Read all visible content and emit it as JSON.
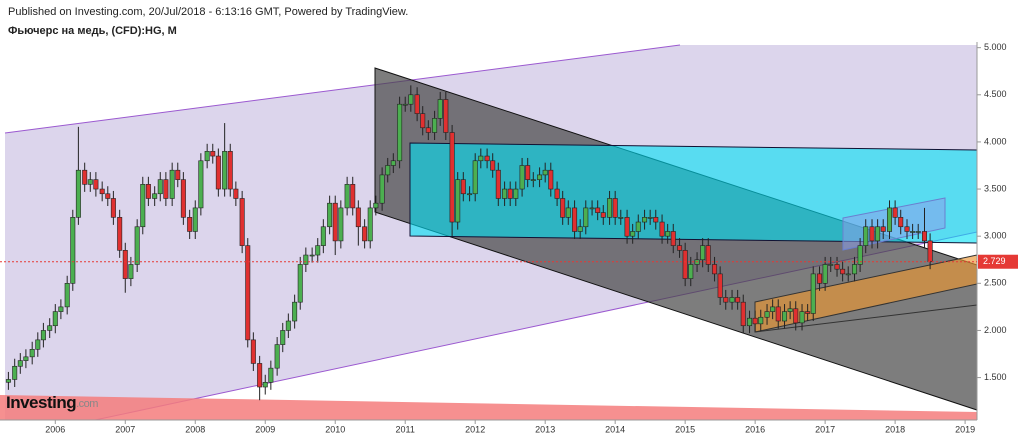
{
  "header": {
    "published": "Published on Investing.com, 20/Jul/2018 - 6:13:16 GMT, Powered by TradingView.",
    "symbol": "Фьючерс на медь, (CFD):HG, M"
  },
  "logo": {
    "name": "Investing",
    "domain": ".com"
  },
  "chart_data": {
    "type": "candlestick",
    "title": "Фьючерс на медь, (CFD):HG, M",
    "up_color": "#4caf50",
    "down_color": "#e03030",
    "last_color": "#e53935",
    "x": [
      2005.33,
      2005.42,
      2005.5,
      2005.58,
      2005.67,
      2005.75,
      2005.83,
      2005.92,
      2006,
      2006.08,
      2006.17,
      2006.25,
      2006.33,
      2006.42,
      2006.5,
      2006.58,
      2006.67,
      2006.75,
      2006.83,
      2006.92,
      2007,
      2007.08,
      2007.17,
      2007.25,
      2007.33,
      2007.42,
      2007.5,
      2007.58,
      2007.67,
      2007.75,
      2007.83,
      2007.92,
      2008,
      2008.08,
      2008.17,
      2008.25,
      2008.33,
      2008.42,
      2008.5,
      2008.58,
      2008.67,
      2008.75,
      2008.83,
      2008.92,
      2009,
      2009.08,
      2009.17,
      2009.25,
      2009.33,
      2009.42,
      2009.5,
      2009.58,
      2009.67,
      2009.75,
      2009.83,
      2009.92,
      2010,
      2010.08,
      2010.17,
      2010.25,
      2010.33,
      2010.42,
      2010.5,
      2010.58,
      2010.67,
      2010.75,
      2010.83,
      2010.92,
      2011,
      2011.08,
      2011.17,
      2011.25,
      2011.33,
      2011.42,
      2011.5,
      2011.58,
      2011.67,
      2011.75,
      2011.83,
      2011.92,
      2012,
      2012.08,
      2012.17,
      2012.25,
      2012.33,
      2012.42,
      2012.5,
      2012.58,
      2012.67,
      2012.75,
      2012.83,
      2012.92,
      2013,
      2013.08,
      2013.17,
      2013.25,
      2013.33,
      2013.42,
      2013.5,
      2013.58,
      2013.67,
      2013.75,
      2013.83,
      2013.92,
      2014,
      2014.08,
      2014.17,
      2014.25,
      2014.33,
      2014.42,
      2014.5,
      2014.58,
      2014.67,
      2014.75,
      2014.83,
      2014.92,
      2015,
      2015.08,
      2015.17,
      2015.25,
      2015.33,
      2015.42,
      2015.5,
      2015.58,
      2015.67,
      2015.75,
      2015.83,
      2015.92,
      2016,
      2016.08,
      2016.17,
      2016.25,
      2016.33,
      2016.42,
      2016.5,
      2016.58,
      2016.67,
      2016.75,
      2016.83,
      2016.92,
      2017,
      2017.08,
      2017.17,
      2017.25,
      2017.33,
      2017.42,
      2017.5,
      2017.58,
      2017.67,
      2017.75,
      2017.83,
      2017.92,
      2018,
      2018.08,
      2018.17,
      2018.25,
      2018.33,
      2018.42,
      2018.5
    ],
    "open": [
      1.45,
      1.48,
      1.62,
      1.68,
      1.72,
      1.8,
      1.9,
      2.0,
      2.05,
      2.2,
      2.25,
      2.5,
      3.2,
      3.7,
      3.55,
      3.6,
      3.5,
      3.45,
      3.4,
      3.2,
      2.85,
      2.55,
      2.7,
      3.1,
      3.55,
      3.4,
      3.45,
      3.6,
      3.4,
      3.7,
      3.6,
      3.2,
      3.05,
      3.3,
      3.8,
      3.9,
      3.85,
      3.5,
      3.9,
      3.5,
      3.4,
      2.9,
      1.9,
      1.65,
      1.4,
      1.45,
      1.6,
      1.85,
      2.0,
      2.1,
      2.3,
      2.7,
      2.8,
      2.8,
      2.9,
      3.1,
      3.35,
      2.95,
      3.3,
      3.55,
      3.3,
      3.1,
      2.95,
      3.3,
      3.35,
      3.65,
      3.75,
      3.8,
      4.4,
      4.4,
      4.5,
      4.3,
      4.15,
      4.1,
      4.25,
      4.45,
      4.1,
      3.15,
      3.6,
      3.45,
      3.45,
      3.8,
      3.85,
      3.8,
      3.7,
      3.4,
      3.5,
      3.4,
      3.5,
      3.75,
      3.6,
      3.6,
      3.65,
      3.7,
      3.5,
      3.4,
      3.2,
      3.3,
      3.05,
      3.1,
      3.3,
      3.3,
      3.25,
      3.2,
      3.4,
      3.2,
      3.2,
      3.0,
      3.05,
      3.15,
      3.2,
      3.2,
      3.15,
      3.0,
      3.05,
      2.9,
      2.85,
      2.55,
      2.7,
      2.75,
      2.9,
      2.7,
      2.6,
      2.35,
      2.3,
      2.35,
      2.3,
      2.05,
      2.13,
      2.07,
      2.14,
      2.2,
      2.25,
      2.1,
      2.2,
      2.23,
      2.08,
      2.2,
      2.18,
      2.6,
      2.5,
      2.7,
      2.7,
      2.65,
      2.6,
      2.6,
      2.7,
      2.9,
      3.1,
      2.95,
      3.1,
      3.05,
      3.3,
      3.2,
      3.1,
      3.05,
      3.05,
      3.05,
      2.95
    ],
    "high": [
      1.56,
      1.7,
      1.76,
      1.8,
      1.88,
      1.98,
      2.08,
      2.13,
      2.28,
      2.33,
      2.58,
      3.28,
      4.16,
      3.78,
      3.68,
      3.68,
      3.58,
      3.53,
      3.48,
      3.28,
      2.93,
      2.78,
      3.18,
      3.63,
      3.63,
      3.53,
      3.68,
      3.68,
      3.78,
      3.78,
      3.68,
      3.28,
      3.38,
      3.88,
      3.98,
      3.98,
      3.93,
      4.2,
      3.98,
      3.58,
      3.48,
      2.98,
      1.98,
      1.73,
      1.53,
      1.68,
      1.93,
      2.08,
      2.18,
      2.38,
      2.78,
      2.88,
      2.88,
      2.98,
      3.18,
      3.43,
      3.43,
      3.38,
      3.63,
      3.63,
      3.38,
      3.18,
      3.38,
      3.43,
      3.73,
      3.83,
      3.88,
      4.48,
      4.48,
      4.6,
      4.58,
      4.38,
      4.23,
      4.33,
      4.53,
      4.53,
      4.18,
      3.68,
      3.68,
      3.53,
      3.88,
      3.93,
      3.93,
      3.88,
      3.78,
      3.58,
      3.58,
      3.58,
      3.83,
      3.83,
      3.68,
      3.73,
      3.78,
      3.78,
      3.58,
      3.48,
      3.38,
      3.38,
      3.18,
      3.38,
      3.38,
      3.38,
      3.33,
      3.48,
      3.48,
      3.28,
      3.28,
      3.13,
      3.23,
      3.28,
      3.28,
      3.28,
      3.23,
      3.13,
      3.13,
      2.98,
      2.93,
      2.78,
      2.83,
      2.98,
      2.98,
      2.78,
      2.68,
      2.43,
      2.43,
      2.43,
      2.38,
      2.21,
      2.21,
      2.22,
      2.28,
      2.33,
      2.33,
      2.28,
      2.31,
      2.31,
      2.28,
      2.28,
      2.68,
      2.68,
      2.78,
      2.78,
      2.78,
      2.73,
      2.68,
      2.78,
      2.98,
      3.18,
      3.18,
      3.18,
      3.18,
      3.38,
      3.38,
      3.28,
      3.18,
      3.13,
      3.13,
      3.3,
      3.03
    ],
    "low": [
      1.37,
      1.4,
      1.54,
      1.6,
      1.64,
      1.72,
      1.82,
      1.92,
      1.97,
      2.12,
      2.17,
      2.42,
      3.12,
      3.47,
      3.47,
      3.42,
      3.37,
      3.32,
      3.12,
      2.77,
      2.4,
      2.47,
      2.62,
      3.02,
      3.32,
      3.32,
      3.37,
      3.32,
      3.32,
      3.52,
      3.12,
      2.97,
      2.97,
      3.22,
      3.72,
      3.77,
      3.42,
      3.42,
      3.42,
      3.32,
      2.82,
      1.82,
      1.57,
      1.26,
      1.32,
      1.37,
      1.52,
      1.77,
      1.92,
      2.02,
      2.22,
      2.62,
      2.72,
      2.72,
      2.82,
      3.02,
      2.8,
      2.87,
      3.22,
      3.22,
      2.9,
      2.87,
      2.87,
      3.22,
      3.27,
      3.57,
      3.67,
      3.72,
      4.32,
      4.32,
      4.22,
      4.07,
      4.02,
      4.02,
      4.17,
      4.02,
      3.0,
      3.07,
      3.37,
      3.37,
      3.37,
      3.72,
      3.72,
      3.62,
      3.32,
      3.32,
      3.32,
      3.32,
      3.42,
      3.52,
      3.52,
      3.52,
      3.57,
      3.42,
      3.32,
      3.12,
      3.12,
      2.97,
      2.97,
      3.02,
      3.22,
      3.17,
      3.12,
      3.12,
      3.12,
      3.12,
      2.92,
      2.92,
      2.97,
      3.07,
      3.12,
      3.07,
      2.92,
      2.92,
      2.82,
      2.77,
      2.47,
      2.47,
      2.62,
      2.67,
      2.62,
      2.52,
      2.27,
      2.22,
      2.22,
      2.22,
      1.97,
      1.97,
      1.99,
      1.99,
      2.06,
      2.12,
      2.02,
      2.02,
      2.12,
      2.0,
      2.0,
      2.1,
      2.1,
      2.42,
      2.42,
      2.62,
      2.57,
      2.52,
      2.52,
      2.52,
      2.62,
      2.82,
      2.87,
      2.87,
      2.97,
      2.97,
      3.12,
      3.02,
      2.97,
      2.97,
      2.97,
      2.87,
      2.65
    ],
    "close": [
      1.48,
      1.62,
      1.68,
      1.72,
      1.8,
      1.9,
      2.0,
      2.05,
      2.2,
      2.25,
      2.5,
      3.2,
      3.7,
      3.55,
      3.6,
      3.5,
      3.45,
      3.4,
      3.2,
      2.85,
      2.55,
      2.7,
      3.1,
      3.55,
      3.4,
      3.45,
      3.6,
      3.4,
      3.7,
      3.6,
      3.2,
      3.05,
      3.3,
      3.8,
      3.9,
      3.85,
      3.5,
      3.9,
      3.5,
      3.4,
      2.9,
      1.9,
      1.65,
      1.4,
      1.45,
      1.6,
      1.85,
      2.0,
      2.1,
      2.3,
      2.7,
      2.8,
      2.8,
      2.9,
      3.1,
      3.35,
      2.95,
      3.3,
      3.55,
      3.3,
      3.1,
      2.95,
      3.3,
      3.35,
      3.65,
      3.75,
      3.8,
      4.4,
      4.4,
      4.5,
      4.3,
      4.15,
      4.1,
      4.25,
      4.45,
      4.1,
      3.15,
      3.6,
      3.45,
      3.45,
      3.8,
      3.85,
      3.8,
      3.7,
      3.4,
      3.5,
      3.4,
      3.5,
      3.75,
      3.6,
      3.6,
      3.65,
      3.7,
      3.5,
      3.4,
      3.2,
      3.3,
      3.05,
      3.1,
      3.3,
      3.3,
      3.25,
      3.2,
      3.4,
      3.2,
      3.2,
      3.0,
      3.05,
      3.15,
      3.2,
      3.2,
      3.15,
      3.0,
      3.05,
      2.9,
      2.85,
      2.55,
      2.7,
      2.75,
      2.9,
      2.7,
      2.6,
      2.35,
      2.3,
      2.35,
      2.3,
      2.05,
      2.13,
      2.07,
      2.14,
      2.2,
      2.25,
      2.1,
      2.2,
      2.23,
      2.08,
      2.2,
      2.18,
      2.6,
      2.5,
      2.7,
      2.7,
      2.65,
      2.6,
      2.6,
      2.7,
      2.9,
      3.1,
      2.95,
      3.1,
      3.05,
      3.3,
      3.2,
      3.1,
      3.05,
      3.05,
      3.05,
      2.95,
      2.729
    ],
    "last_price": 2.729,
    "xlim": [
      2005.21,
      2019.17
    ],
    "xticks": [
      2006,
      2007,
      2008,
      2009,
      2010,
      2011,
      2012,
      2013,
      2014,
      2015,
      2016,
      2017,
      2018,
      2019
    ],
    "ylim": [
      1.05,
      5.06
    ],
    "yticks": [
      {
        "value": 1.5,
        "label": "1.500"
      },
      {
        "value": 2,
        "label": "2.000"
      },
      {
        "value": 2.5,
        "label": "2.500"
      },
      {
        "value": 3,
        "label": "3.000"
      },
      {
        "value": 3.5,
        "label": "3.500"
      },
      {
        "value": 4,
        "label": "4.000"
      },
      {
        "value": 4.5,
        "label": "4.500"
      },
      {
        "value": 5,
        "label": "5.000"
      }
    ]
  }
}
